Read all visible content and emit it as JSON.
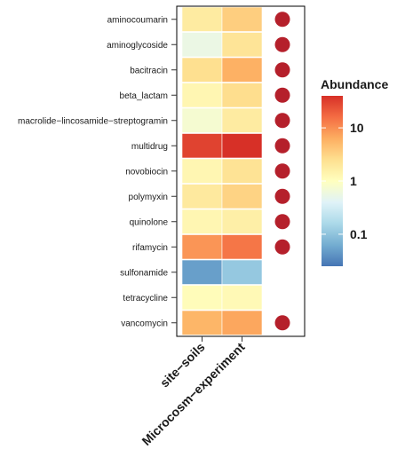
{
  "chart_data": {
    "type": "heatmap",
    "rows": [
      "aminocoumarin",
      "aminoglycoside",
      "bacitracin",
      "beta_lactam",
      "macrolide−lincosamide−streptogramin",
      "multidrug",
      "novobiocin",
      "polymyxin",
      "quinolone",
      "rifamycin",
      "sulfonamide",
      "tetracycline",
      "vancomycin"
    ],
    "columns": [
      "site−soils",
      "Microcosm−experiment"
    ],
    "values": [
      [
        1.8,
        3.5
      ],
      [
        0.55,
        2.2
      ],
      [
        2.5,
        6.0
      ],
      [
        1.3,
        2.6
      ],
      [
        0.75,
        1.8
      ],
      [
        30,
        40
      ],
      [
        1.3,
        2.3
      ],
      [
        1.9,
        3.2
      ],
      [
        1.3,
        1.6
      ],
      [
        9,
        14
      ],
      [
        0.05,
        0.11
      ],
      [
        1.1,
        1.2
      ],
      [
        5.5,
        7.0
      ]
    ],
    "markers": [
      true,
      true,
      true,
      true,
      true,
      true,
      true,
      true,
      true,
      true,
      false,
      false,
      true
    ],
    "marker_color": "#b5202b",
    "scale": "log",
    "colormap": [
      "#4575b4",
      "#74add1",
      "#abd9e9",
      "#e0f3f8",
      "#ffffbf",
      "#fee090",
      "#fdae61",
      "#f46d43",
      "#d73027"
    ],
    "color_range": [
      0.025,
      40
    ],
    "legend": {
      "title": "Abundance",
      "ticks": [
        {
          "value": 10,
          "label": "10"
        },
        {
          "value": 1,
          "label": "1"
        },
        {
          "value": 0.1,
          "label": "0.1"
        }
      ],
      "position": "right"
    }
  }
}
